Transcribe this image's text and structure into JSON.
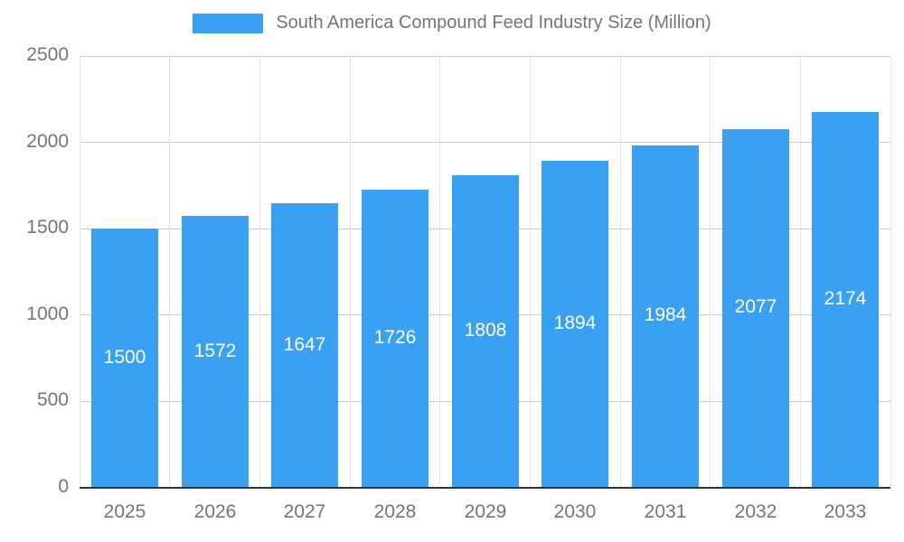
{
  "legend": {
    "title": "South America Compound Feed Industry Size (Million)"
  },
  "colors": {
    "bar": "#3aa0f2",
    "bar_label_text": "#ffffff",
    "axis_text": "#757575",
    "gridline_h": "#cccccc",
    "gridline_v": "#e6e6e6",
    "axis_line": "#333333",
    "background": "#ffffff"
  },
  "chart_data": {
    "type": "bar",
    "title": "South America Compound Feed Industry Size (Million)",
    "categories": [
      "2025",
      "2026",
      "2027",
      "2028",
      "2029",
      "2030",
      "2031",
      "2032",
      "2033"
    ],
    "values": [
      1500,
      1572,
      1647,
      1726,
      1808,
      1894,
      1984,
      2077,
      2174
    ],
    "xlabel": "",
    "ylabel": "",
    "ylim": [
      0,
      2500
    ],
    "yticks": [
      0,
      500,
      1000,
      1500,
      2000,
      2500
    ],
    "grid": true,
    "legend_position": "top",
    "value_labels": "inside-center"
  }
}
